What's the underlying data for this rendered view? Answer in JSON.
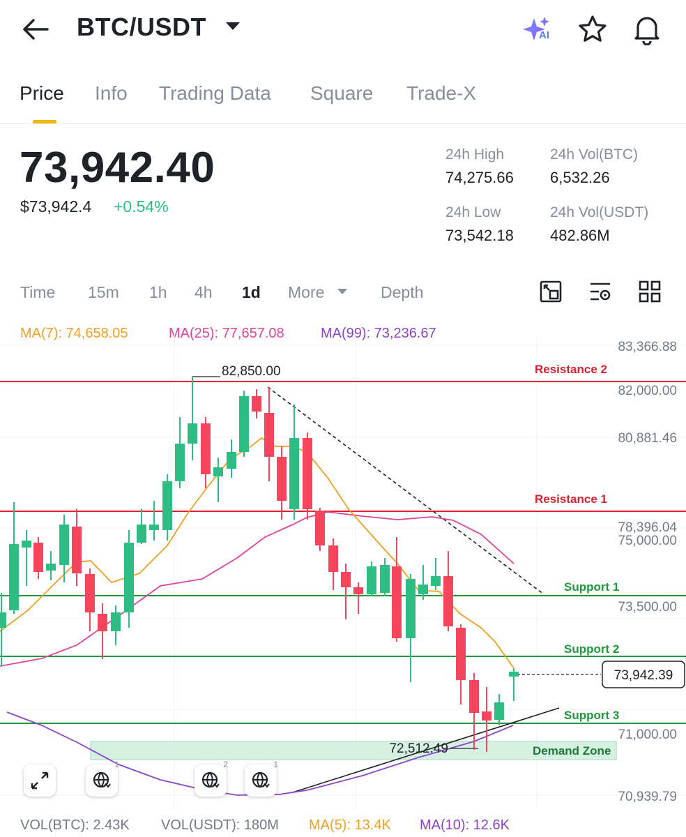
{
  "header": {
    "back_icon": "arrow-left-icon",
    "pair": "BTC/USDT",
    "ai_icon_label": "AI",
    "icons": [
      "ai-sparkle-icon",
      "star-icon",
      "bell-icon"
    ]
  },
  "tabs": [
    {
      "label": "Price",
      "active": true
    },
    {
      "label": "Info"
    },
    {
      "label": "Trading Data"
    },
    {
      "label": "Square"
    },
    {
      "label": "Trade-X"
    }
  ],
  "ticker": {
    "last_price": "73,942.40",
    "usd_price": "$73,942.4",
    "change": "+0.54%",
    "high_label": "24h High",
    "high_value": "74,275.66",
    "vol_btc_label": "24h Vol(BTC)",
    "vol_btc_value": "6,532.26",
    "low_label": "24h Low",
    "low_value": "73,542.18",
    "vol_usdt_label": "24h Vol(USDT)",
    "vol_usdt_value": "482.86M"
  },
  "intervals": {
    "time": "Time",
    "m15": "15m",
    "h1": "1h",
    "h4": "4h",
    "d1": "1d",
    "more": "More",
    "depth": "Depth",
    "active": "1d"
  },
  "indicators": {
    "ma7": "MA(7): 74,658.05",
    "ma25": "MA(25): 77,657.08",
    "ma99": "MA(99): 73,236.67",
    "colors": {
      "ma7": "#f0a020",
      "ma25": "#e0439a",
      "ma99": "#8e44c8"
    }
  },
  "volume_bar": {
    "vol_btc": "VOL(BTC): 2.43K",
    "vol_usdt": "VOL(USDT): 180M",
    "ma5": "MA(5): 13.4K",
    "ma10": "MA(10): 12.6K"
  },
  "chart_tools": [
    {
      "icon": "expand-icon",
      "badge": ""
    },
    {
      "icon": "globe-draw-icon",
      "badge": "1"
    },
    {
      "icon": "globe-draw-icon",
      "badge": "2"
    },
    {
      "icon": "globe-draw-icon",
      "badge": "1"
    }
  ],
  "chart_data": {
    "type": "candlestick",
    "interval": "1d",
    "colors": {
      "up": "#2ebd85",
      "down": "#f6465d"
    },
    "price_axis": [
      "83,366.88",
      "82,000.00",
      "80,881.46",
      "78,396.04",
      "75,000.00",
      "73,500.00",
      "71,000.00",
      "70,939.79"
    ],
    "high_marker": "82,850.00",
    "low_marker": "72,512.49",
    "current_price_tag": "73,942.39",
    "annotations": [
      {
        "label": "Resistance 2",
        "kind": "resistance"
      },
      {
        "label": "Resistance 1",
        "kind": "resistance"
      },
      {
        "label": "Support 1",
        "kind": "support"
      },
      {
        "label": "Support 2",
        "kind": "support"
      },
      {
        "label": "Support 3",
        "kind": "support"
      },
      {
        "label": "Demand Zone",
        "kind": "zone"
      }
    ]
  }
}
